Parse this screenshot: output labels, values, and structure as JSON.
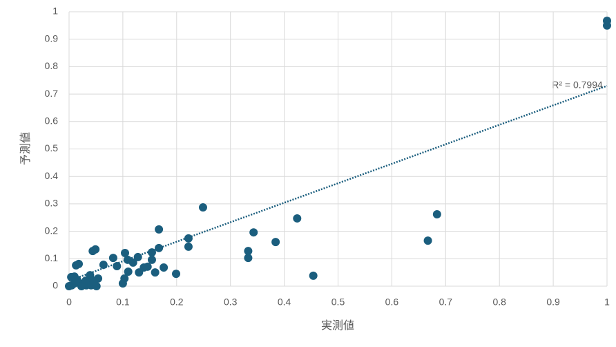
{
  "chart_data": {
    "type": "scatter",
    "x_label": "実測値",
    "y_label": "予測値",
    "annotation": "R² = 0.7994",
    "color": "#1b5e7e",
    "grid": true,
    "xlim": [
      0,
      1
    ],
    "ylim": [
      0,
      1
    ],
    "xticks": [
      0,
      0.1,
      0.2,
      0.3,
      0.4,
      0.5,
      0.6,
      0.7,
      0.8,
      0.9,
      1
    ],
    "yticks": [
      0,
      0.1,
      0.2,
      0.3,
      0.4,
      0.5,
      0.6,
      0.7,
      0.8,
      0.9,
      1
    ],
    "x": [
      1,
      1,
      0.684,
      0.667,
      0.454,
      0.424,
      0.384,
      0.343,
      0.333,
      0.333,
      0.249,
      0.222,
      0.222,
      0.199,
      0.167,
      0.167,
      0.176,
      0.16,
      0.154,
      0.154,
      0.146,
      0.139,
      0.128,
      0.13,
      0.119,
      0.109,
      0.104,
      0.11,
      0.103,
      0.1,
      0.082,
      0.089,
      0.064,
      0.049,
      0.044,
      0.013,
      0.018,
      0.039,
      0.054,
      0.005,
      0.01,
      0.015,
      0.004,
      0.026,
      0.032,
      0.039,
      0.046,
      0.051,
      0.023,
      0,
      0.01,
      0.031,
      0.041
    ],
    "y": [
      0.967,
      0.95,
      0.262,
      0.166,
      0.038,
      0.247,
      0.161,
      0.196,
      0.128,
      0.103,
      0.287,
      0.174,
      0.144,
      0.045,
      0.207,
      0.139,
      0.068,
      0.05,
      0.123,
      0.096,
      0.071,
      0.068,
      0.106,
      0.05,
      0.086,
      0.096,
      0.121,
      0.053,
      0.028,
      0.01,
      0.103,
      0.073,
      0.078,
      0.134,
      0.128,
      0.076,
      0.081,
      0.04,
      0.028,
      0.003,
      0.01,
      0.023,
      0.033,
      0.01,
      0.003,
      0.01,
      0.02,
      0,
      0,
      0,
      0.035,
      0.02,
      0.003
    ],
    "trendline": {
      "x": [
        0,
        1
      ],
      "y": [
        0.02,
        0.73
      ]
    }
  }
}
